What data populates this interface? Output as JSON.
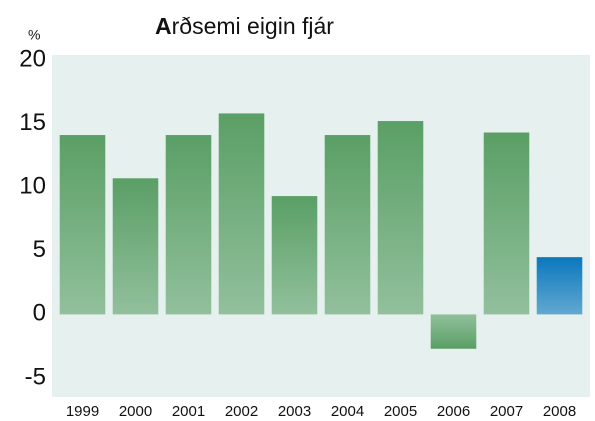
{
  "chart_data": {
    "type": "bar",
    "title": "Arðsemi eigin fjár",
    "y_unit": "%",
    "categories": [
      "1999",
      "2000",
      "2001",
      "2002",
      "2003",
      "2004",
      "2005",
      "2006",
      "2007",
      "2008"
    ],
    "values": [
      14.1,
      10.7,
      14.1,
      15.8,
      9.3,
      14.1,
      15.2,
      -2.7,
      14.3,
      4.5
    ],
    "colors": [
      "#5a9f65",
      "#5a9f65",
      "#5a9f65",
      "#5a9f65",
      "#5a9f65",
      "#5a9f65",
      "#5a9f65",
      "#5a9f65",
      "#5a9f65",
      "#0a78bd"
    ],
    "ylim": [
      -5,
      20
    ],
    "yticks": [
      -5,
      0,
      5,
      10,
      15,
      20
    ]
  }
}
